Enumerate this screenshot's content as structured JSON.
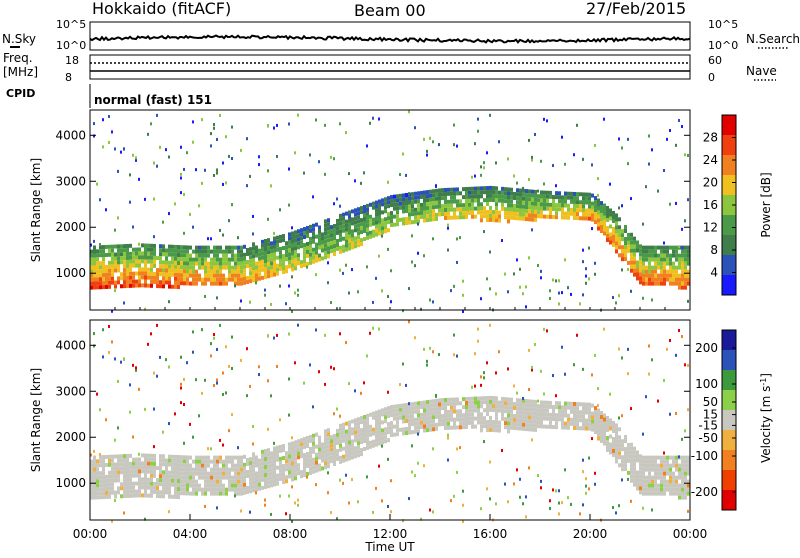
{
  "header": {
    "station": "Hokkaido (fitACF)",
    "beam": "Beam 00",
    "date": "27/Feb/2015"
  },
  "noise_panel": {
    "left_label": "N.Sky",
    "right_label": "N.Search",
    "left_ticks": [
      "10^5",
      "10^0"
    ],
    "right_ticks": [
      "10^5",
      "10^0"
    ]
  },
  "freq_panel": {
    "left_label_1": "Freq.",
    "left_label_2": "[MHz]",
    "right_label": "Nave",
    "left_ticks": [
      "18",
      "8"
    ],
    "right_ticks": [
      "60",
      "0"
    ]
  },
  "cpid": {
    "label": "CPID",
    "value": "normal (fast) 151"
  },
  "colors": {
    "power_scale": [
      "#1a1aff",
      "#2a52b8",
      "#3f7d4a",
      "#4a9a4a",
      "#8cc63f",
      "#f0c020",
      "#f08020",
      "#f04010",
      "#e00000"
    ],
    "velocity_scale": [
      "#e00000",
      "#f04000",
      "#f08020",
      "#f0b040",
      "#c8c8c0",
      "#8cd04a",
      "#3c9a3c",
      "#2a52b8",
      "#1a1a9a"
    ]
  },
  "chart_data": [
    {
      "type": "heatmap",
      "name": "power",
      "ylabel": "Slant Range [km]",
      "y_ticks": [
        1000,
        2000,
        3000,
        4000
      ],
      "ylim": [
        200,
        4550
      ],
      "xlim": [
        0,
        24
      ],
      "colorbar_label": "Power [dB]",
      "colorbar_ticks": [
        4,
        8,
        12,
        16,
        20,
        24,
        28
      ],
      "colorbar_range": [
        0,
        32
      ],
      "bands": [
        {
          "hour": 0,
          "lower_km": 700,
          "upper_km": 1600,
          "peak_db": 28
        },
        {
          "hour": 2,
          "lower_km": 700,
          "upper_km": 1650,
          "peak_db": 28
        },
        {
          "hour": 4,
          "lower_km": 750,
          "upper_km": 1600,
          "peak_db": 26
        },
        {
          "hour": 6,
          "lower_km": 800,
          "upper_km": 1600,
          "peak_db": 24
        },
        {
          "hour": 8,
          "lower_km": 1050,
          "upper_km": 1900,
          "peak_db": 20
        },
        {
          "hour": 10,
          "lower_km": 1450,
          "upper_km": 2300,
          "peak_db": 18
        },
        {
          "hour": 12,
          "lower_km": 2000,
          "upper_km": 2700,
          "peak_db": 18
        },
        {
          "hour": 14,
          "lower_km": 2250,
          "upper_km": 2850,
          "peak_db": 20
        },
        {
          "hour": 16,
          "lower_km": 2150,
          "upper_km": 2900,
          "peak_db": 22
        },
        {
          "hour": 18,
          "lower_km": 2200,
          "upper_km": 2800,
          "peak_db": 22
        },
        {
          "hour": 20,
          "lower_km": 2200,
          "upper_km": 2750,
          "peak_db": 24
        },
        {
          "hour": 21,
          "lower_km": 1500,
          "upper_km": 2300,
          "peak_db": 26
        },
        {
          "hour": 22,
          "lower_km": 800,
          "upper_km": 1600,
          "peak_db": 26
        },
        {
          "hour": 24,
          "lower_km": 700,
          "upper_km": 1600,
          "peak_db": 26
        }
      ]
    },
    {
      "type": "heatmap",
      "name": "velocity",
      "xlabel": "Time UT",
      "ylabel": "Slant Range [km]",
      "x_ticks": [
        "00:00",
        "04:00",
        "08:00",
        "12:00",
        "16:00",
        "20:00",
        "00:00"
      ],
      "y_ticks": [
        1000,
        2000,
        3000,
        4000
      ],
      "ylim": [
        200,
        4550
      ],
      "xlim": [
        0,
        24
      ],
      "colorbar_label": "Velocity [m s^-1]",
      "colorbar_ticks": [
        200,
        100,
        50,
        15,
        -15,
        -50,
        -100,
        -200
      ],
      "colorbar_range": [
        -250,
        250
      ]
    }
  ]
}
